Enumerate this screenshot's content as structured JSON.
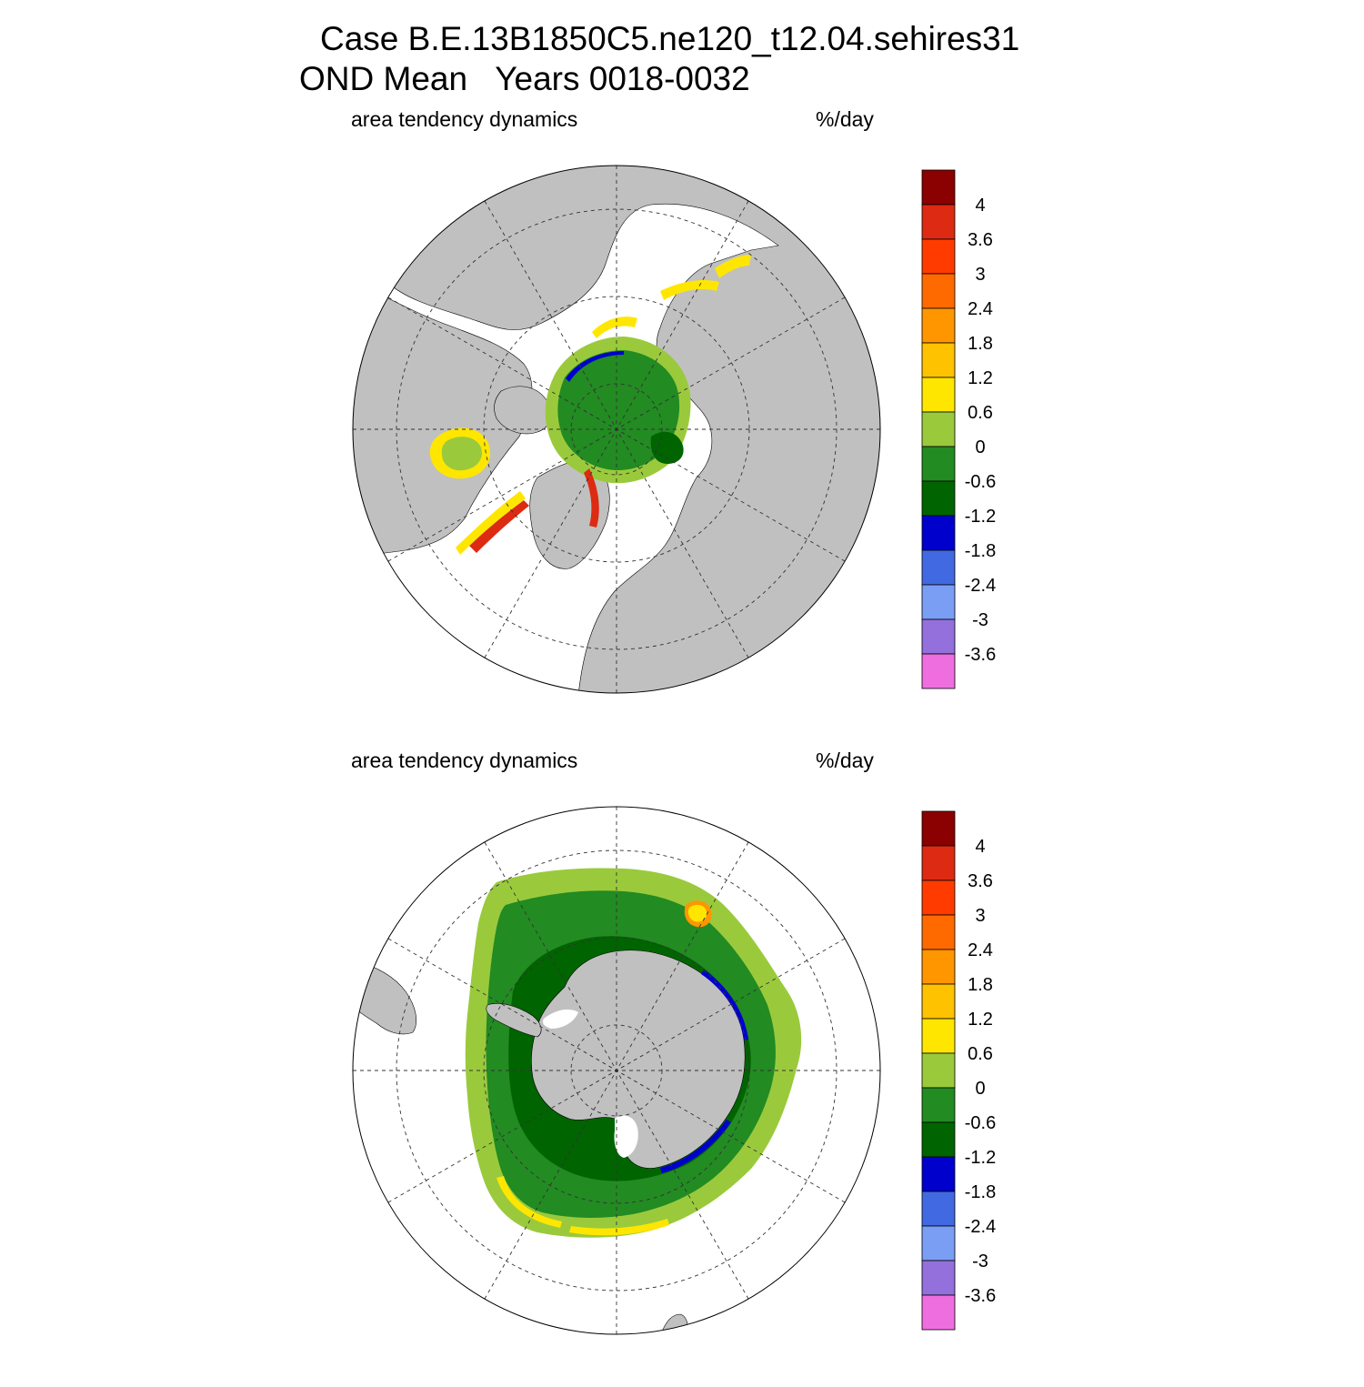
{
  "header": {
    "title_line1": "Case B.E.13B1850C5.ne120_t12.04.sehires31",
    "title_line2": "OND Mean   Years 0018-0032"
  },
  "panels": [
    {
      "id": "north",
      "hemisphere": "Northern Hemisphere (polar stereographic)",
      "left_label": "area tendency dynamics",
      "right_label": "%/day"
    },
    {
      "id": "south",
      "hemisphere": "Southern Hemisphere (polar stereographic)",
      "left_label": "area tendency dynamics",
      "right_label": "%/day"
    }
  ],
  "colorbar": {
    "levels": [
      "4",
      "3.6",
      "3",
      "2.4",
      "1.8",
      "1.2",
      "0.6",
      "0",
      "-0.6",
      "-1.2",
      "-1.8",
      "-2.4",
      "-3",
      "-3.6"
    ],
    "colors": [
      "#8b0000",
      "#dc2b12",
      "#ff3b00",
      "#ff6a00",
      "#ff9600",
      "#ffc200",
      "#ffe600",
      "#9aca3c",
      "#228b22",
      "#006400",
      "#0000cd",
      "#4169e1",
      "#7b9ef5",
      "#9370db",
      "#ee6ee0"
    ]
  },
  "map_colors": {
    "land": "#c0c0c0",
    "ocean": "#ffffff",
    "ice_green": "#228b22",
    "ice_light_green": "#9aca3c",
    "ice_yellow": "#ffe600",
    "ice_orange": "#ff9600",
    "ice_red": "#dc2b12",
    "ice_blue": "#0000cd",
    "ice_dark_green": "#006400"
  }
}
